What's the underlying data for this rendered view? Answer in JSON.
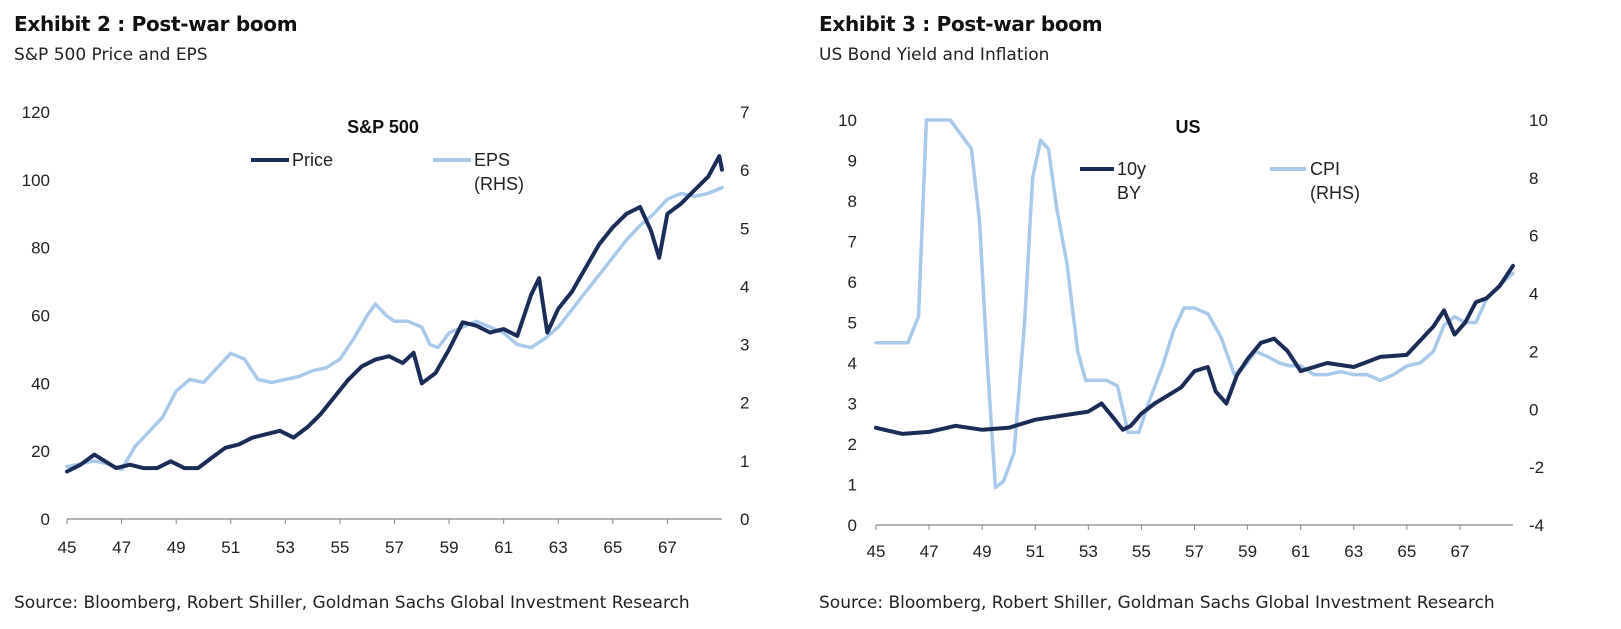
{
  "colors": {
    "dark": "#1b2c57",
    "light": "#a9c9ea"
  },
  "exhibits": [
    {
      "title": "Exhibit 2 : Post-war boom",
      "subtitle": "S&P 500 Price and EPS",
      "source": "Source: Bloomberg, Robert Shiller, Goldman Sachs Global Investment Research"
    },
    {
      "title": "Exhibit 3 : Post-war boom",
      "subtitle": "US Bond Yield and Inflation",
      "source": "Source: Bloomberg, Robert Shiller, Goldman Sachs Global Investment Research"
    }
  ],
  "chart_data": [
    {
      "type": "line",
      "title": "S&P 500",
      "x_ticks": [
        "45",
        "47",
        "49",
        "51",
        "53",
        "55",
        "57",
        "59",
        "61",
        "63",
        "65",
        "67"
      ],
      "xlim": [
        1945,
        1969
      ],
      "left_axis": {
        "ticks": [
          "0",
          "20",
          "40",
          "60",
          "80",
          "100",
          "120"
        ],
        "ylim": [
          0,
          120
        ]
      },
      "right_axis": {
        "ticks": [
          "0",
          "1",
          "2",
          "3",
          "4",
          "5",
          "6",
          "7"
        ],
        "ylim": [
          0,
          7
        ]
      },
      "legend_placement": "top-center",
      "grid": false,
      "series": [
        {
          "name": "Price",
          "axis": "left",
          "color": "dark",
          "x": [
            1945.0,
            1945.5,
            1946.0,
            1946.4,
            1946.8,
            1947.3,
            1947.8,
            1948.3,
            1948.8,
            1949.3,
            1949.8,
            1950.3,
            1950.8,
            1951.3,
            1951.8,
            1952.3,
            1952.8,
            1953.3,
            1953.8,
            1954.3,
            1954.8,
            1955.3,
            1955.8,
            1956.3,
            1956.8,
            1957.3,
            1957.7,
            1958.0,
            1958.5,
            1959.0,
            1959.5,
            1960.0,
            1960.5,
            1961.0,
            1961.5,
            1962.0,
            1962.3,
            1962.6,
            1963.0,
            1963.5,
            1964.0,
            1964.5,
            1965.0,
            1965.5,
            1966.0,
            1966.4,
            1966.7,
            1967.0,
            1967.5,
            1968.0,
            1968.5,
            1968.9,
            1969.0
          ],
          "y": [
            14,
            16,
            19,
            17,
            15,
            16,
            15,
            15,
            17,
            15,
            15,
            18,
            21,
            22,
            24,
            25,
            26,
            24,
            27,
            31,
            36,
            41,
            45,
            47,
            48,
            46,
            49,
            40,
            43,
            50,
            58,
            57,
            55,
            56,
            54,
            66,
            71,
            55,
            62,
            67,
            74,
            81,
            86,
            90,
            92,
            85,
            77,
            90,
            93,
            97,
            101,
            107,
            103
          ]
        },
        {
          "name": "EPS (RHS)",
          "axis": "right",
          "color": "light",
          "x": [
            1945.0,
            1945.5,
            1946.0,
            1946.5,
            1947.0,
            1947.5,
            1948.0,
            1948.5,
            1949.0,
            1949.5,
            1950.0,
            1950.5,
            1951.0,
            1951.5,
            1952.0,
            1952.5,
            1953.0,
            1953.5,
            1954.0,
            1954.5,
            1955.0,
            1955.5,
            1956.0,
            1956.3,
            1956.7,
            1957.0,
            1957.5,
            1958.0,
            1958.3,
            1958.6,
            1959.0,
            1959.5,
            1960.0,
            1960.5,
            1961.0,
            1961.5,
            1962.0,
            1962.5,
            1963.0,
            1963.5,
            1964.0,
            1964.5,
            1965.0,
            1965.5,
            1966.0,
            1966.5,
            1967.0,
            1967.5,
            1968.0,
            1968.5,
            1969.0
          ],
          "y": [
            0.9,
            0.95,
            1.0,
            0.95,
            0.85,
            1.25,
            1.5,
            1.75,
            2.2,
            2.4,
            2.35,
            2.6,
            2.85,
            2.75,
            2.4,
            2.35,
            2.4,
            2.45,
            2.55,
            2.6,
            2.75,
            3.1,
            3.5,
            3.7,
            3.5,
            3.4,
            3.4,
            3.3,
            3.0,
            2.95,
            3.2,
            3.3,
            3.4,
            3.3,
            3.2,
            3.0,
            2.95,
            3.1,
            3.3,
            3.6,
            3.9,
            4.2,
            4.5,
            4.8,
            5.05,
            5.25,
            5.5,
            5.6,
            5.55,
            5.6,
            5.7
          ]
        }
      ]
    },
    {
      "type": "line",
      "title": "US",
      "x_ticks": [
        "45",
        "47",
        "49",
        "51",
        "53",
        "55",
        "57",
        "59",
        "61",
        "63",
        "65",
        "67"
      ],
      "xlim": [
        1945,
        1969
      ],
      "left_axis": {
        "ticks": [
          "0",
          "1",
          "2",
          "3",
          "4",
          "5",
          "6",
          "7",
          "8",
          "9",
          "10"
        ],
        "ylim": [
          0,
          10
        ]
      },
      "right_axis": {
        "ticks": [
          "-4",
          "-2",
          "0",
          "2",
          "4",
          "6",
          "8",
          "10"
        ],
        "ylim": [
          -4,
          10
        ]
      },
      "legend_placement": "top-center",
      "grid": false,
      "series": [
        {
          "name": "10y BY",
          "axis": "left",
          "color": "dark",
          "x": [
            1945.0,
            1946.0,
            1947.0,
            1948.0,
            1949.0,
            1950.0,
            1951.0,
            1952.0,
            1953.0,
            1953.5,
            1954.0,
            1954.3,
            1954.6,
            1955.0,
            1955.5,
            1956.0,
            1956.5,
            1957.0,
            1957.5,
            1957.8,
            1958.2,
            1958.6,
            1959.0,
            1959.5,
            1960.0,
            1960.5,
            1961.0,
            1962.0,
            1963.0,
            1964.0,
            1965.0,
            1966.0,
            1966.4,
            1966.8,
            1967.2,
            1967.6,
            1968.0,
            1968.5,
            1969.0
          ],
          "y": [
            2.4,
            2.25,
            2.3,
            2.45,
            2.35,
            2.4,
            2.6,
            2.7,
            2.8,
            3.0,
            2.6,
            2.35,
            2.45,
            2.75,
            3.0,
            3.2,
            3.4,
            3.8,
            3.9,
            3.3,
            3.0,
            3.7,
            4.1,
            4.5,
            4.6,
            4.3,
            3.8,
            4.0,
            3.9,
            4.15,
            4.2,
            4.9,
            5.3,
            4.7,
            5.0,
            5.5,
            5.6,
            5.9,
            6.4
          ]
        },
        {
          "name": "CPI (RHS)",
          "axis": "right",
          "color": "light",
          "x": [
            1945.0,
            1945.5,
            1945.9,
            1946.2,
            1946.6,
            1946.9,
            1947.2,
            1947.8,
            1948.2,
            1948.6,
            1948.9,
            1949.2,
            1949.5,
            1949.8,
            1950.2,
            1950.6,
            1950.9,
            1951.2,
            1951.5,
            1951.8,
            1952.2,
            1952.6,
            1952.9,
            1953.3,
            1953.7,
            1954.1,
            1954.5,
            1954.9,
            1955.3,
            1955.8,
            1956.2,
            1956.6,
            1957.0,
            1957.5,
            1958.0,
            1958.5,
            1958.9,
            1959.3,
            1959.8,
            1960.2,
            1960.6,
            1961.0,
            1961.5,
            1962.0,
            1962.5,
            1963.0,
            1963.5,
            1964.0,
            1964.5,
            1965.0,
            1965.5,
            1966.0,
            1966.4,
            1966.8,
            1967.2,
            1967.6,
            1968.0,
            1968.5,
            1969.0
          ],
          "y": [
            2.3,
            2.3,
            2.3,
            2.3,
            3.2,
            10,
            10,
            10,
            9.5,
            9,
            6.5,
            1.5,
            -2.7,
            -2.5,
            -1.5,
            3,
            8,
            9.3,
            9,
            7,
            5,
            2,
            1,
            1,
            1,
            0.8,
            -0.8,
            -0.8,
            0.3,
            1.5,
            2.7,
            3.5,
            3.5,
            3.3,
            2.5,
            1.2,
            1.5,
            2,
            1.8,
            1.6,
            1.5,
            1.5,
            1.2,
            1.2,
            1.3,
            1.2,
            1.2,
            1.0,
            1.2,
            1.5,
            1.6,
            2.0,
            2.9,
            3.2,
            3.0,
            3.0,
            3.8,
            4.3,
            4.7
          ]
        }
      ]
    }
  ]
}
